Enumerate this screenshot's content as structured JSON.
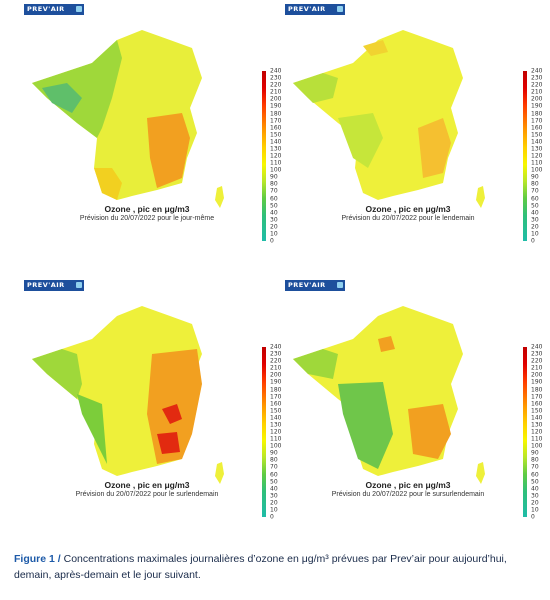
{
  "logo_text": "PREV'AIR",
  "scale_ticks": [
    "240",
    "230",
    "220",
    "210",
    "200",
    "190",
    "180",
    "170",
    "160",
    "150",
    "140",
    "130",
    "120",
    "110",
    "100",
    "90",
    "80",
    "70",
    "60",
    "50",
    "40",
    "30",
    "20",
    "10",
    "0"
  ],
  "panels": [
    {
      "title": "Ozone , pic en μg/m3",
      "subtitle": "Prévision du 20/07/2022 pour le jour-même"
    },
    {
      "title": "Ozone , pic en μg/m3",
      "subtitle": "Prévision du 20/07/2022 pour le lendemain"
    },
    {
      "title": "Ozone , pic en μg/m3",
      "subtitle": "Prévision du 20/07/2022 pour le surlendemain"
    },
    {
      "title": "Ozone , pic en μg/m3",
      "subtitle": "Prévision du 20/07/2022 pour le sursurlendemain"
    }
  ],
  "figure_caption": {
    "label": "Figure 1 /",
    "text": "Concentrations maximales journalières d’ozone en μg/m³ prévues par Prev’air pour aujourd’hui, demain, après-demain et le jour suivant."
  },
  "colors": {
    "logo_bg": "#1d4f9c",
    "caption_label": "#1d5aa8"
  }
}
